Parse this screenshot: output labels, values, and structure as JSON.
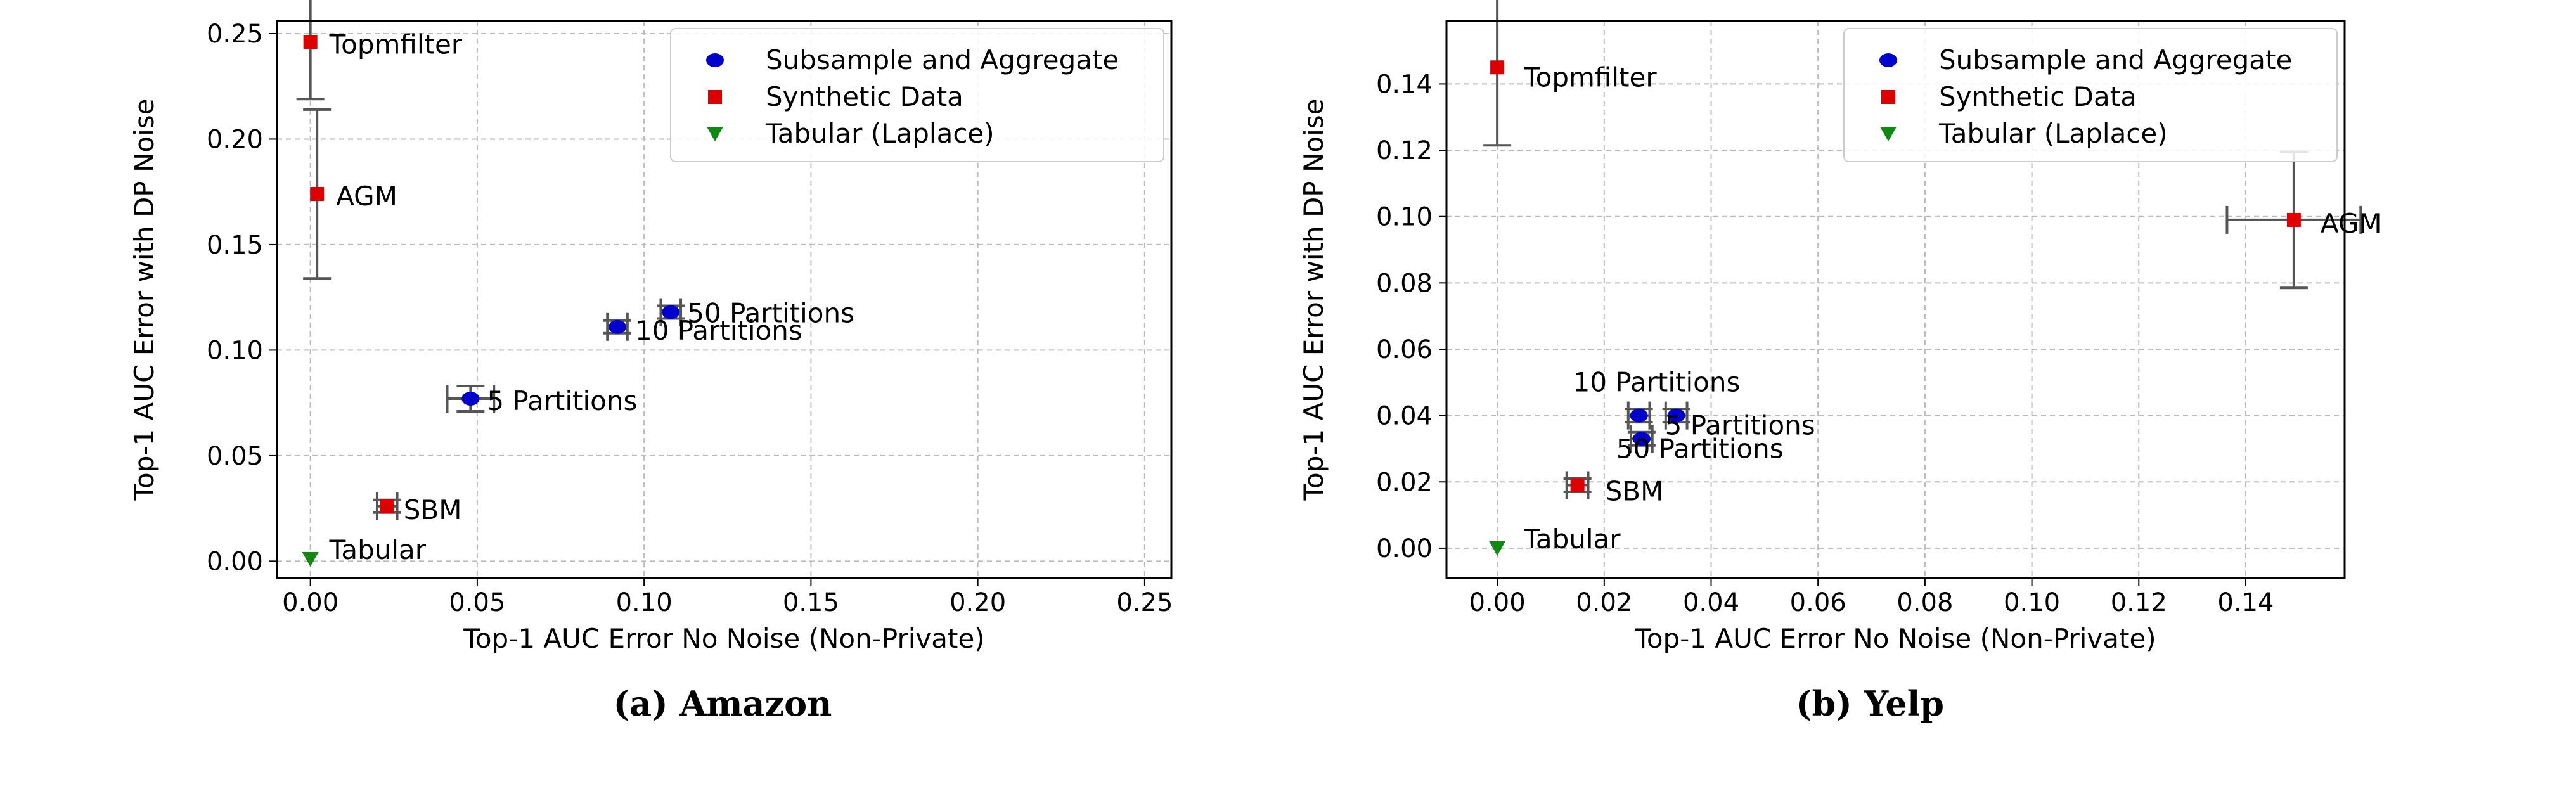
{
  "colors": {
    "subsample": "#0000cc",
    "synthetic": "#dd0000",
    "tabular": "#118811",
    "errorbar": "#555555",
    "grid": "#bbbbbb"
  },
  "legend_labels": [
    "Subsample and Aggregate",
    "Synthetic Data",
    "Tabular (Laplace)"
  ],
  "captions": {
    "amazon": "(a) Amazon",
    "yelp": "(b) Yelp"
  },
  "chart_data": [
    {
      "type": "scatter",
      "title": "(a) Amazon",
      "xlabel": "Top-1 AUC Error No Noise (Non-Private)",
      "ylabel": "Top-1 AUC Error with DP Noise",
      "xlim": [
        -0.01,
        0.258
      ],
      "ylim": [
        -0.008,
        0.256
      ],
      "xticks": [
        0.0,
        0.05,
        0.1,
        0.15,
        0.2,
        0.25
      ],
      "xtick_labels": [
        "0.00",
        "0.05",
        "0.10",
        "0.15",
        "0.20",
        "0.25"
      ],
      "yticks": [
        0.0,
        0.05,
        0.1,
        0.15,
        0.2,
        0.25
      ],
      "ytick_labels": [
        "0.00",
        "0.05",
        "0.10",
        "0.15",
        "0.20",
        "0.25"
      ],
      "grid": true,
      "legend_position": "top-right",
      "points": [
        {
          "label": "Topmfilter",
          "series": "synthetic",
          "x": 0.0,
          "y": 0.246,
          "xerr": 0.0,
          "yerr": 0.027
        },
        {
          "label": "AGM",
          "series": "synthetic",
          "x": 0.002,
          "y": 0.174,
          "xerr": 0.0,
          "yerr": 0.04
        },
        {
          "label": "50 Partitions",
          "series": "subsample",
          "x": 0.108,
          "y": 0.118,
          "xerr": 0.003,
          "yerr": 0.003
        },
        {
          "label": "10 Partitions",
          "series": "subsample",
          "x": 0.092,
          "y": 0.111,
          "xerr": 0.003,
          "yerr": 0.003
        },
        {
          "label": "5 Partitions",
          "series": "subsample",
          "x": 0.048,
          "y": 0.077,
          "xerr": 0.007,
          "yerr": 0.006
        },
        {
          "label": "SBM",
          "series": "synthetic",
          "x": 0.023,
          "y": 0.026,
          "xerr": 0.003,
          "yerr": 0.003
        },
        {
          "label": "Tabular",
          "series": "tabular",
          "x": 0.0,
          "y": 0.001,
          "xerr": 0.0,
          "yerr": 0.0
        }
      ]
    },
    {
      "type": "scatter",
      "title": "(b) Yelp",
      "xlabel": "Top-1 AUC Error No Noise (Non-Private)",
      "ylabel": "Top-1 AUC Error with DP Noise",
      "xlim": [
        -0.0095,
        0.1585
      ],
      "ylim": [
        -0.009,
        0.159
      ],
      "xticks": [
        0.0,
        0.02,
        0.04,
        0.06,
        0.08,
        0.1,
        0.12,
        0.14
      ],
      "xtick_labels": [
        "0.00",
        "0.02",
        "0.04",
        "0.06",
        "0.08",
        "0.10",
        "0.12",
        "0.14"
      ],
      "yticks": [
        0.0,
        0.02,
        0.04,
        0.06,
        0.08,
        0.1,
        0.12,
        0.14
      ],
      "ytick_labels": [
        "0.00",
        "0.02",
        "0.04",
        "0.06",
        "0.08",
        "0.10",
        "0.12",
        "0.14"
      ],
      "grid": true,
      "legend_position": "top-right",
      "points": [
        {
          "label": "Topmfilter",
          "series": "synthetic",
          "x": 0.0,
          "y": 0.145,
          "xerr": 0.0,
          "yerr": 0.0235
        },
        {
          "label": "AGM",
          "series": "synthetic",
          "x": 0.149,
          "y": 0.099,
          "xerr": 0.0125,
          "yerr": 0.0205
        },
        {
          "label": "10 Partitions",
          "series": "subsample",
          "x": 0.0265,
          "y": 0.04,
          "xerr": 0.002,
          "yerr": 0.002
        },
        {
          "label": "5 Partitions",
          "series": "subsample",
          "x": 0.0335,
          "y": 0.04,
          "xerr": 0.002,
          "yerr": 0.002
        },
        {
          "label": "50 Partitions",
          "series": "subsample",
          "x": 0.027,
          "y": 0.033,
          "xerr": 0.002,
          "yerr": 0.002
        },
        {
          "label": "SBM",
          "series": "synthetic",
          "x": 0.015,
          "y": 0.019,
          "xerr": 0.002,
          "yerr": 0.002
        },
        {
          "label": "Tabular",
          "series": "tabular",
          "x": 0.0,
          "y": 0.0,
          "xerr": 0.0,
          "yerr": 0.0
        }
      ]
    }
  ]
}
